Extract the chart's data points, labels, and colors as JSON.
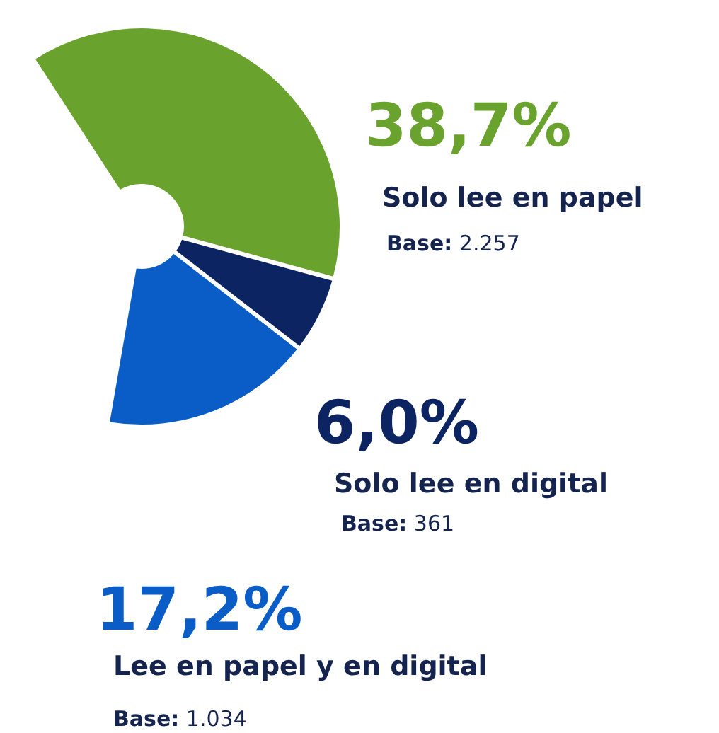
{
  "chart_data": {
    "type": "donut",
    "categories": [
      "Solo lee en papel",
      "Solo lee en digital",
      "Lee en papel y en digital"
    ],
    "values": [
      38.7,
      6.0,
      17.2
    ],
    "colors": [
      "#6aa22e",
      "#0c2461",
      "#0a5cc6"
    ],
    "value_labels": [
      "38,7%",
      "6,0%",
      "17,2%"
    ],
    "annotations": [
      "Base: 2.257",
      "Base: 361",
      "Base: 1.034"
    ]
  }
}
